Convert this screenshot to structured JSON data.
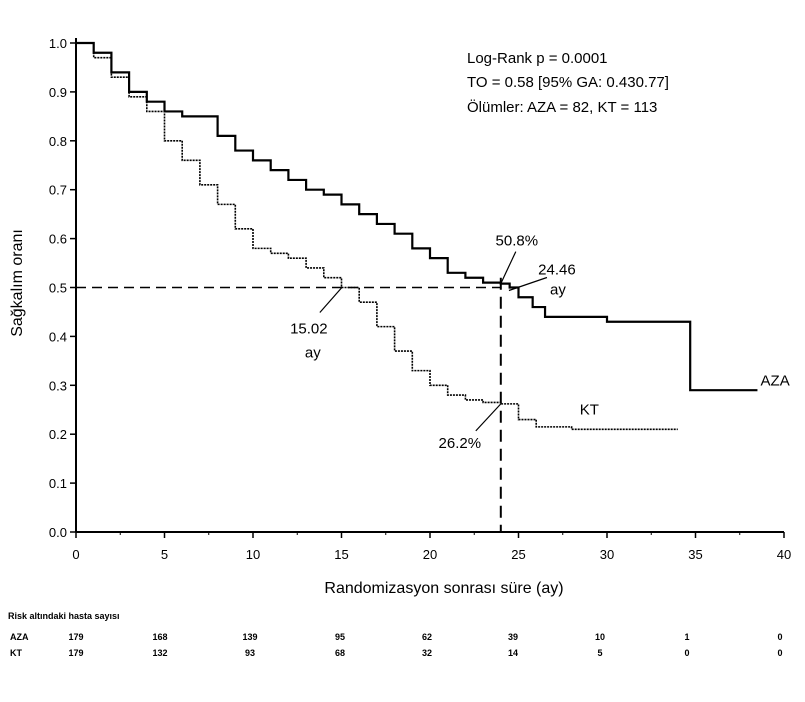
{
  "chart_data": {
    "type": "line",
    "title": "",
    "xlabel": "Randomizasyon sonrası süre (ay)",
    "ylabel": "Sağkalım oranı",
    "xlim": [
      0,
      40
    ],
    "ylim": [
      0,
      1.0
    ],
    "x_ticks": [
      0,
      5,
      10,
      15,
      20,
      25,
      30,
      35,
      40
    ],
    "y_ticks": [
      "0.0",
      "0.1",
      "0.2",
      "0.3",
      "0.4",
      "0.5",
      "0.6",
      "0.7",
      "0.8",
      "0.9",
      "1.0"
    ],
    "grid": false,
    "stats": [
      "Log-Rank p = 0.0001",
      "TO = 0.58 [95% GA: 0.430.77]",
      "Ölümler: AZA = 82, KT = 113"
    ],
    "series": [
      {
        "name": "AZA",
        "style": "solid",
        "x": [
          0,
          1,
          2,
          3,
          4,
          5,
          6,
          7,
          8,
          9,
          10,
          11,
          12,
          13,
          14,
          15,
          16,
          17,
          18,
          19,
          20,
          21,
          22,
          23,
          24,
          24.5,
          25,
          25.8,
          26.5,
          28,
          30,
          32,
          34.7,
          34.7,
          38.5
        ],
        "y": [
          1.0,
          0.98,
          0.94,
          0.9,
          0.88,
          0.86,
          0.85,
          0.85,
          0.81,
          0.78,
          0.76,
          0.74,
          0.72,
          0.7,
          0.69,
          0.67,
          0.65,
          0.63,
          0.61,
          0.58,
          0.56,
          0.53,
          0.52,
          0.51,
          0.508,
          0.5,
          0.48,
          0.46,
          0.44,
          0.44,
          0.43,
          0.43,
          0.43,
          0.29,
          0.29
        ]
      },
      {
        "name": "KT",
        "style": "dotted",
        "x": [
          0,
          1,
          2,
          3,
          4,
          5,
          6,
          7,
          8,
          9,
          10,
          11,
          12,
          13,
          14,
          15,
          16,
          17,
          18,
          19,
          20,
          21,
          22,
          23,
          24,
          25,
          26,
          28,
          30,
          32,
          34
        ],
        "y": [
          1.0,
          0.97,
          0.93,
          0.89,
          0.86,
          0.8,
          0.76,
          0.71,
          0.67,
          0.62,
          0.58,
          0.57,
          0.56,
          0.54,
          0.52,
          0.5,
          0.47,
          0.42,
          0.37,
          0.33,
          0.3,
          0.28,
          0.27,
          0.265,
          0.262,
          0.23,
          0.215,
          0.21,
          0.21,
          0.21,
          0.21
        ]
      }
    ],
    "reference_lines": [
      {
        "axis": "y",
        "value": 0.5,
        "style": "dashed",
        "x_to": 24
      },
      {
        "axis": "x",
        "value": 24,
        "style": "dashed"
      }
    ],
    "annotations": [
      {
        "text": "50.8%",
        "x": 24,
        "y": 0.508
      },
      {
        "text": "24.46",
        "x": 24.46,
        "y": 0.5
      },
      {
        "text": "ay",
        "x": 24.46,
        "y": 0.5
      },
      {
        "text": "15.02",
        "x": 15.02,
        "y": 0.5
      },
      {
        "text": "ay",
        "x": 15.02,
        "y": 0.5
      },
      {
        "text": "26.2%",
        "x": 24,
        "y": 0.262
      },
      {
        "text": "KT",
        "x": 29,
        "y": 0.24
      },
      {
        "text": "AZA",
        "x": 39.5,
        "y": 0.3
      }
    ]
  },
  "risk_table": {
    "title": "Risk altındaki hasta sayısı",
    "rows": [
      {
        "label": "AZA",
        "values": [
          "179",
          "168",
          "139",
          "95",
          "62",
          "39",
          "10",
          "1",
          "0"
        ]
      },
      {
        "label": "KT",
        "values": [
          "179",
          "132",
          "93",
          "68",
          "32",
          "14",
          "5",
          "0",
          "0"
        ]
      }
    ]
  }
}
